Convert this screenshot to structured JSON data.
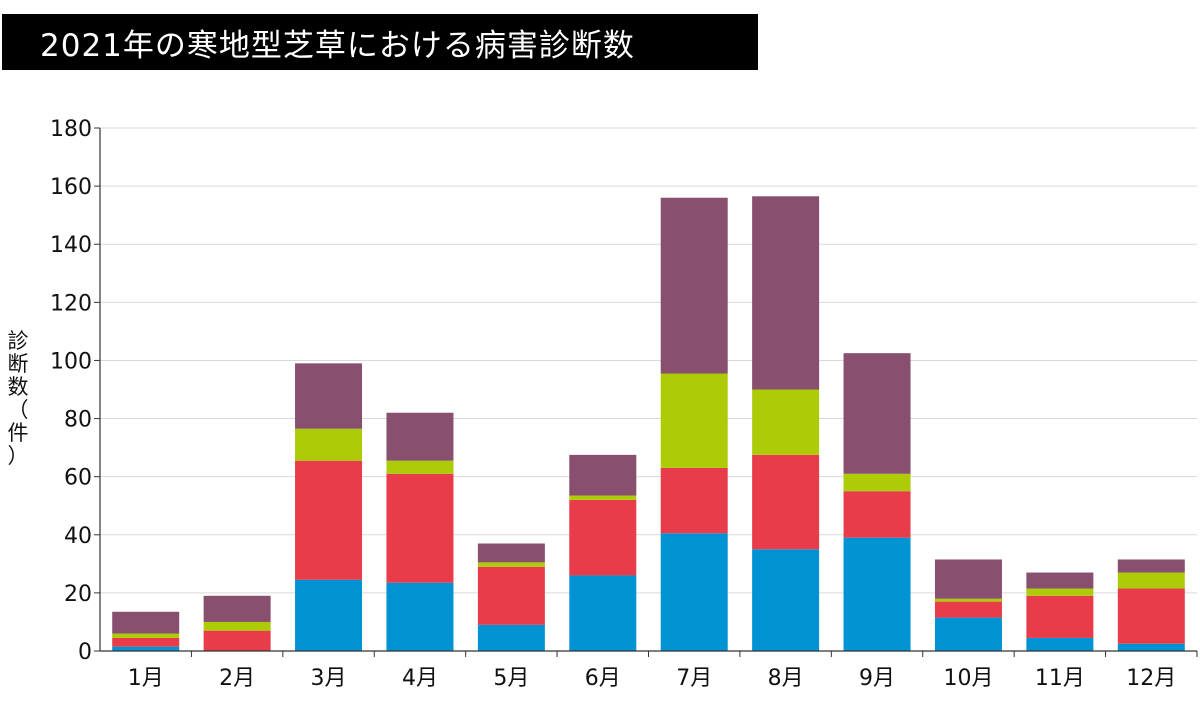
{
  "chart_data": {
    "type": "bar",
    "stacked": true,
    "title": "2021年の寒地型芝草における病害診断数",
    "ylabel": "診断数（件）",
    "ylabel_chars": [
      "診",
      "断",
      "数",
      "（",
      "件",
      "）"
    ],
    "xlabel": "",
    "ylim": [
      0,
      180
    ],
    "yticks": [
      0,
      20,
      40,
      60,
      80,
      100,
      120,
      140,
      160,
      180
    ],
    "grid": true,
    "legend": "none",
    "categories": [
      "1月",
      "2月",
      "3月",
      "4月",
      "5月",
      "6月",
      "7月",
      "8月",
      "9月",
      "10月",
      "11月",
      "12月"
    ],
    "series": [
      {
        "color": "#0093d3",
        "values": [
          1.5,
          0,
          24.5,
          23.5,
          9,
          26,
          40.5,
          35,
          39,
          11.5,
          4.5,
          2.5
        ]
      },
      {
        "color": "#e83c4b",
        "values": [
          3,
          7,
          41,
          37.5,
          20,
          26,
          22.5,
          32.5,
          16,
          5.5,
          14.5,
          19
        ]
      },
      {
        "color": "#adcc07",
        "values": [
          1.5,
          3,
          11,
          4.5,
          1.5,
          1.5,
          32.5,
          22.5,
          6,
          1,
          2.5,
          5.5
        ]
      },
      {
        "color": "#884f6e",
        "values": [
          7.5,
          9,
          22.5,
          16.5,
          6.5,
          14,
          60.5,
          66.5,
          41.5,
          13.5,
          5.5,
          4.5
        ]
      }
    ]
  }
}
